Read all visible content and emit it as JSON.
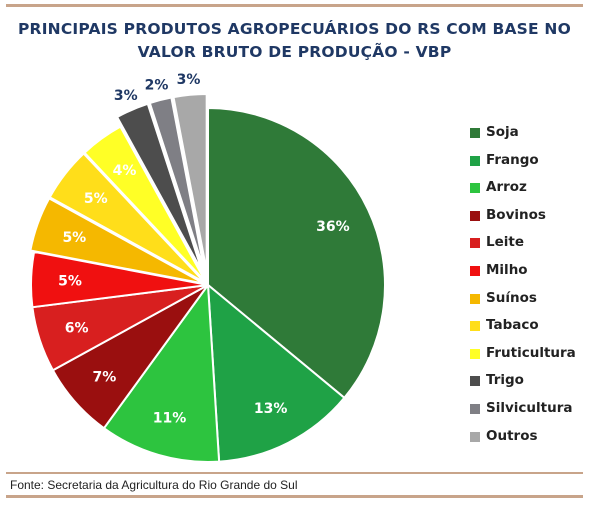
{
  "chart_data": {
    "type": "pie",
    "title": "PRINCIPAIS PRODUTOS AGROPECUÁRIOS DO RS COM BASE NO",
    "subtitle": "VALOR BRUTO DE PRODUÇÃO - VBP",
    "legend_position": "right",
    "slices": [
      {
        "name": "Soja",
        "value": 36,
        "label": "36%",
        "color": "#2f7a38"
      },
      {
        "name": "Frango",
        "value": 13,
        "label": "13%",
        "color": "#1fa246"
      },
      {
        "name": "Arroz",
        "value": 11,
        "label": "11%",
        "color": "#2dc43f"
      },
      {
        "name": "Bovinos",
        "value": 7,
        "label": "7%",
        "color": "#9a0f0f"
      },
      {
        "name": "Leite",
        "value": 6,
        "label": "6%",
        "color": "#d81f1f"
      },
      {
        "name": "Milho",
        "value": 5,
        "label": "5%",
        "color": "#f01010"
      },
      {
        "name": "Suínos",
        "value": 5,
        "label": "5%",
        "color": "#f5b800"
      },
      {
        "name": "Tabaco",
        "value": 5,
        "label": "5%",
        "color": "#ffde1a"
      },
      {
        "name": "Fruticultura",
        "value": 4,
        "label": "4%",
        "color": "#ffff26"
      },
      {
        "name": "Trigo",
        "value": 3,
        "label": "3%",
        "color": "#4d4d4d"
      },
      {
        "name": "Silvicultura",
        "value": 2,
        "label": "2%",
        "color": "#7f7f85"
      },
      {
        "name": "Outros",
        "value": 3,
        "label": "3%",
        "color": "#a8a8a8"
      }
    ]
  },
  "source": "Fonte: Secretaria da Agricultura do Rio Grande do Sul"
}
